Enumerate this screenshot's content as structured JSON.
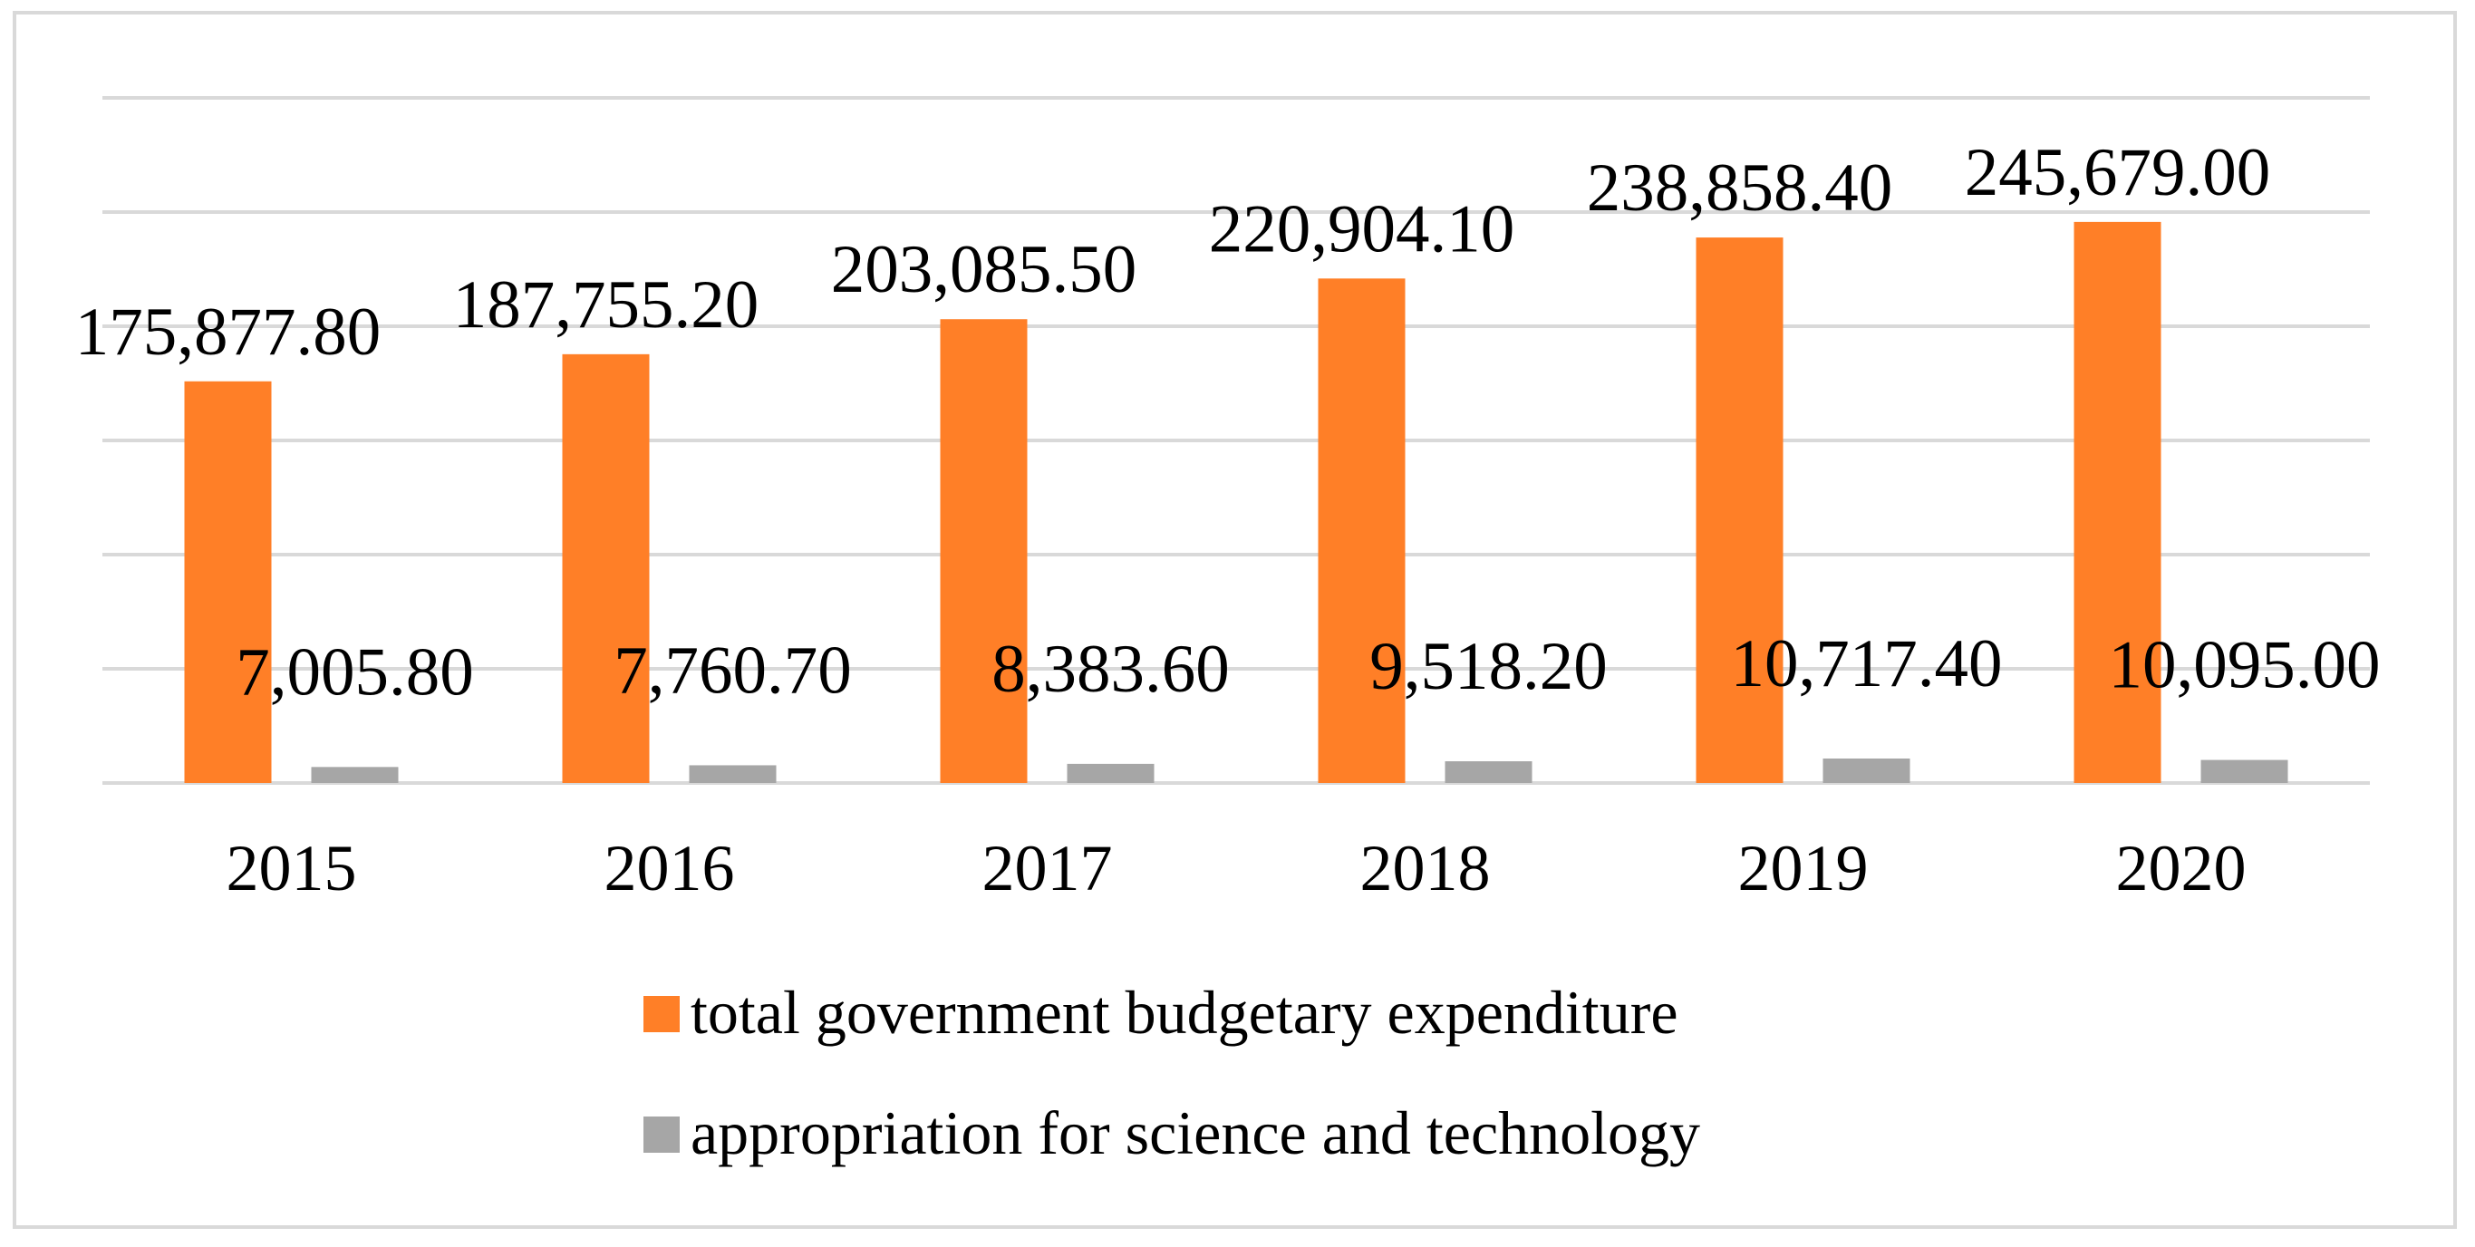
{
  "colors": {
    "series_total": "#FF7F27",
    "series_science": "#A6A6A6",
    "gridline": "#D9D9D9",
    "frame": "#D9D9D9"
  },
  "chart_data": {
    "type": "bar",
    "title": "",
    "xlabel": "",
    "ylabel": "",
    "grid": true,
    "legend_position": "bottom",
    "ylim": [
      0,
      300000
    ],
    "ytick_step": 50000,
    "categories": [
      "2015",
      "2016",
      "2017",
      "2018",
      "2019",
      "2020"
    ],
    "series": [
      {
        "name": "total government budgetary expenditure",
        "color": "#FF7F27",
        "values": [
          175877.8,
          187755.2,
          203085.5,
          220904.1,
          238858.4,
          245679.0
        ],
        "labels": [
          "175,877.80",
          "187,755.20",
          "203,085.50",
          "220,904.10",
          "238,858.40",
          "245,679.00"
        ]
      },
      {
        "name": "appropriation for science and technology",
        "color": "#A6A6A6",
        "values": [
          7005.8,
          7760.7,
          8383.6,
          9518.2,
          10717.4,
          10095.0
        ],
        "labels": [
          "7,005.80",
          "7,760.70",
          "8,383.60",
          "9,518.20",
          "10,717.40",
          "10,095.00"
        ]
      }
    ]
  }
}
